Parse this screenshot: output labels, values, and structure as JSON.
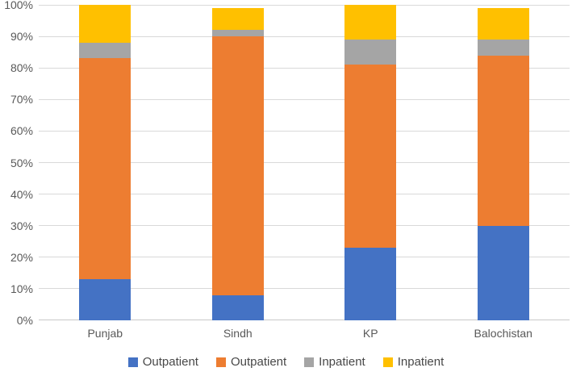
{
  "chart_data": {
    "type": "bar",
    "variant": "100-percent-stacked-column",
    "title": "",
    "xlabel": "",
    "ylabel": "",
    "ylim": [
      0,
      100
    ],
    "grid": true,
    "legend_position": "bottom",
    "categories": [
      "Punjab",
      "Sindh",
      "KP",
      "Balochistan"
    ],
    "series": [
      {
        "name": "Outpatient",
        "color": "#4472C4",
        "values": [
          13,
          8,
          23,
          30
        ]
      },
      {
        "name": "Outpatient",
        "color": "#ED7D31",
        "values": [
          70,
          82,
          58,
          54
        ]
      },
      {
        "name": "Inpatient",
        "color": "#A5A5A5",
        "values": [
          5,
          2,
          8,
          5
        ]
      },
      {
        "name": "Inpatient",
        "color": "#FFC000",
        "values": [
          12,
          7,
          11,
          10
        ]
      }
    ],
    "stack_tops_percent": {
      "Punjab": [
        13,
        83,
        88,
        100
      ],
      "Sindh": [
        8,
        90,
        92,
        99
      ],
      "KP": [
        23,
        81,
        89,
        100
      ],
      "Balochistan": [
        30,
        84,
        89,
        99
      ]
    },
    "y_ticks": [
      "0%",
      "10%",
      "20%",
      "30%",
      "40%",
      "50%",
      "60%",
      "70%",
      "80%",
      "90%",
      "100%"
    ]
  },
  "style_colors": {
    "axis_text": "#595959",
    "gridline": "#D9D9D9",
    "background": "#FFFFFF"
  }
}
